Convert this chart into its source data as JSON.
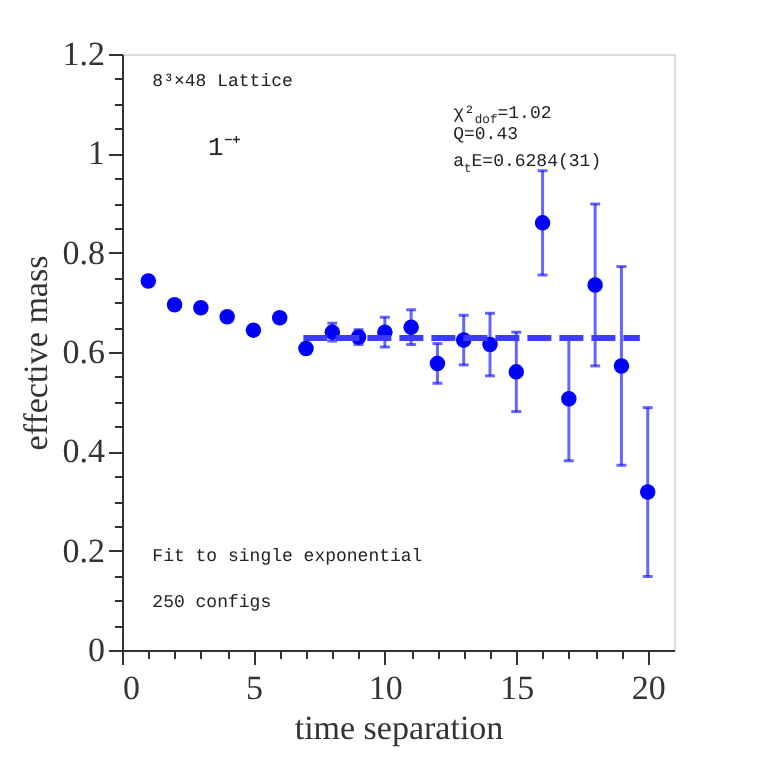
{
  "chart_data": {
    "type": "scatter",
    "xlabel": "time separation",
    "ylabel": "effective mass",
    "xlim": [
      0,
      21
    ],
    "ylim": [
      0,
      1.2
    ],
    "xticks": [
      0,
      5,
      10,
      15,
      20,
      {
        "value": 1,
        "label": null
      },
      {
        "value": 2,
        "label": null
      },
      {
        "value": 3,
        "label": null
      },
      {
        "value": 4,
        "label": null
      },
      {
        "value": 6,
        "label": null
      },
      {
        "value": 7,
        "label": null
      },
      {
        "value": 8,
        "label": null
      },
      {
        "value": 9,
        "label": null
      },
      {
        "value": 11,
        "label": null
      },
      {
        "value": 12,
        "label": null
      },
      {
        "value": 13,
        "label": null
      },
      {
        "value": 14,
        "label": null
      },
      {
        "value": 16,
        "label": null
      },
      {
        "value": 17,
        "label": null
      },
      {
        "value": 18,
        "label": null
      },
      {
        "value": 19,
        "label": null
      }
    ],
    "yticks": [
      0,
      0.2,
      0.4,
      0.6,
      0.8,
      1,
      1.2,
      {
        "value": 0.05,
        "label": null
      },
      {
        "value": 0.1,
        "label": null
      },
      {
        "value": 0.15,
        "label": null
      },
      {
        "value": 0.25,
        "label": null
      },
      {
        "value": 0.3,
        "label": null
      },
      {
        "value": 0.35,
        "label": null
      },
      {
        "value": 0.45,
        "label": null
      },
      {
        "value": 0.5,
        "label": null
      },
      {
        "value": 0.55,
        "label": null
      },
      {
        "value": 0.65,
        "label": null
      },
      {
        "value": 0.7,
        "label": null
      },
      {
        "value": 0.75,
        "label": null
      },
      {
        "value": 0.85,
        "label": null
      },
      {
        "value": 0.9,
        "label": null
      },
      {
        "value": 0.95,
        "label": null
      },
      {
        "value": 1.05,
        "label": null
      },
      {
        "value": 1.1,
        "label": null
      },
      {
        "value": 1.15,
        "label": null
      }
    ],
    "grid": false,
    "series": [
      {
        "color": "#0000ff",
        "marker": "circle",
        "x": [
          1,
          2,
          3,
          4,
          5,
          6,
          7,
          8,
          9,
          10,
          11,
          12,
          13,
          14,
          15,
          16,
          17,
          18,
          19,
          20
        ],
        "values": [
          0.743,
          0.695,
          0.689,
          0.671,
          0.644,
          0.669,
          0.607,
          0.64,
          0.63,
          0.64,
          0.65,
          0.577,
          0.624,
          0.615,
          0.56,
          0.86,
          0.506,
          0.735,
          0.572,
          0.318
        ],
        "errors": [
          0.005,
          0.005,
          0.005,
          0.005,
          0.005,
          0.006,
          0.01,
          0.018,
          0.015,
          0.03,
          0.035,
          0.04,
          0.05,
          0.063,
          0.08,
          0.105,
          0.125,
          0.163,
          0.2,
          0.17
        ]
      },
      {
        "type": "line",
        "color": "#3c3cff",
        "line_style": "dashed",
        "x": [
          6.9,
          19.7
        ],
        "values": [
          0.628,
          0.628
        ]
      }
    ],
    "annotations": [
      "8³×48 Lattice",
      "1⁻⁺",
      "χ²$_{dof}$=1.02",
      "Q=0.43",
      "a$_{t}$E=0.6284(31)",
      "Fit to single exponential",
      "250 configs"
    ]
  }
}
